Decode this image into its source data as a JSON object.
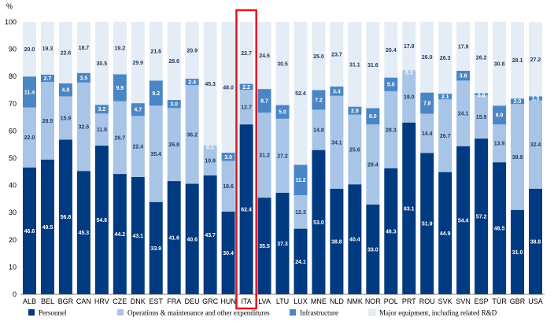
{
  "chart_data": {
    "type": "bar",
    "stacked": true,
    "unit_label": "%",
    "ylim": [
      0,
      100
    ],
    "yticks": [
      0,
      10,
      20,
      30,
      40,
      50,
      60,
      70,
      80,
      90,
      100
    ],
    "categories": [
      "ALB",
      "BEL",
      "BGR",
      "CAN",
      "HRV",
      "CZE",
      "DNK",
      "EST",
      "FRA",
      "DEU",
      "GRC",
      "HUN",
      "ITA",
      "LVA",
      "LTU",
      "LUX",
      "MNE",
      "NLD",
      "NMK",
      "NOR",
      "POL",
      "PRT",
      "ROU",
      "SVK",
      "SVN",
      "ESP",
      "TÜR",
      "GBR",
      "USA"
    ],
    "highlighted_category": "ITA",
    "series": [
      {
        "name": "Personnel",
        "color": "#003a80",
        "label_color": "#ffffff",
        "values": [
          46.6,
          49.5,
          56.8,
          45.3,
          54.6,
          44.2,
          43.1,
          33.9,
          41.6,
          40.6,
          43.7,
          30.4,
          62.4,
          35.5,
          37.3,
          24.1,
          53.0,
          38.8,
          40.4,
          33.0,
          46.3,
          63.1,
          51.9,
          44.9,
          54.4,
          57.2,
          48.5,
          31.0,
          38.8
        ]
      },
      {
        "name": "Operations & maintenance and other expenditures",
        "color": "#a8c4e6",
        "label_color": "#1f3b5c",
        "values": [
          22.0,
          28.5,
          15.9,
          32.5,
          11.8,
          26.7,
          22.4,
          35.4,
          26.8,
          36.2,
          10.9,
          18.6,
          12.7,
          31.2,
          27.2,
          12.3,
          14.8,
          34.1,
          25.6,
          29.4,
          28.3,
          19.0,
          14.4,
          26.7,
          24.1,
          15.9,
          13.9,
          38.9,
          32.4
        ]
      },
      {
        "name": "Infrastructure",
        "color": "#4a86c5",
        "label_color": "#ffffff",
        "values": [
          11.4,
          2.7,
          4.8,
          3.5,
          3.2,
          9.9,
          4.7,
          9.2,
          3.0,
          2.4,
          0.1,
          3.0,
          2.2,
          8.7,
          5.0,
          11.2,
          7.2,
          3.4,
          2.9,
          6.0,
          5.0,
          0.1,
          7.8,
          2.1,
          3.6,
          0.8,
          6.9,
          2.0,
          1.5
        ]
      },
      {
        "name": "Major equipment, including related R&D",
        "color": "#e4ecf6",
        "label_color": "#1f3b5c",
        "values": [
          20.0,
          19.3,
          22.6,
          18.7,
          30.5,
          19.2,
          29.9,
          21.6,
          28.6,
          20.9,
          45.3,
          48.0,
          22.7,
          24.6,
          30.5,
          52.4,
          25.0,
          23.7,
          31.1,
          31.6,
          20.4,
          17.9,
          26.0,
          26.3,
          17.9,
          26.2,
          30.8,
          28.1,
          27.2
        ]
      }
    ],
    "xlabel": "",
    "ylabel": "",
    "grid": false,
    "legend_position": "bottom"
  }
}
